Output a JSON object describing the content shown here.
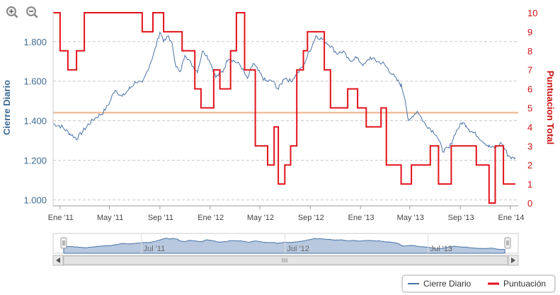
{
  "colors": {
    "price": "#4a73a8",
    "score": "#e3121b",
    "refline": "#f0c0a0",
    "grid": "#c8c8c8",
    "navigator_fill": "#b7c8df",
    "scrollbar": "#e4e4e4"
  },
  "icons": [
    "zoom-in-icon",
    "zoom-out-icon"
  ],
  "chart_data": {
    "type": "line",
    "y_left": {
      "title": "Cierre Diario",
      "ticks": [
        "1.000",
        "1.200",
        "1.400",
        "1.600",
        "1.800"
      ],
      "range": [
        970,
        1960
      ]
    },
    "y_right": {
      "title": "Puntuacion Total",
      "ticks": [
        "0",
        "1",
        "2",
        "3",
        "4",
        "5",
        "6",
        "7",
        "8",
        "9",
        "10"
      ],
      "range": [
        0,
        10
      ]
    },
    "x_axis": {
      "ticks": [
        "Ene '11",
        "May '11",
        "Sep '11",
        "Ene '12",
        "May '12",
        "Sep '12",
        "Ene '13",
        "May '13",
        "Sep '13",
        "Ene '14"
      ],
      "range": [
        "2010-12-15",
        "2014-01-20"
      ]
    },
    "reference_line": {
      "axis": "right",
      "value": 4.75
    },
    "navigator_labels": [
      "Jul '11",
      "Jul '12",
      "Jul '13"
    ],
    "grid": "horizontal dashed",
    "legend_position": "bottom-right",
    "series": [
      {
        "name": "Cierre Diario",
        "axis": "left",
        "style": "line",
        "points": [
          [
            "2010-12-15",
            1385
          ],
          [
            "2011-01-05",
            1370
          ],
          [
            "2011-01-25",
            1335
          ],
          [
            "2011-02-10",
            1310
          ],
          [
            "2011-02-25",
            1345
          ],
          [
            "2011-03-10",
            1380
          ],
          [
            "2011-03-25",
            1410
          ],
          [
            "2011-04-15",
            1440
          ],
          [
            "2011-05-01",
            1490
          ],
          [
            "2011-05-15",
            1560
          ],
          [
            "2011-06-01",
            1520
          ],
          [
            "2011-06-20",
            1565
          ],
          [
            "2011-07-05",
            1600
          ],
          [
            "2011-07-20",
            1585
          ],
          [
            "2011-08-01",
            1650
          ],
          [
            "2011-08-10",
            1700
          ],
          [
            "2011-08-20",
            1760
          ],
          [
            "2011-09-01",
            1850
          ],
          [
            "2011-09-12",
            1800
          ],
          [
            "2011-09-22",
            1830
          ],
          [
            "2011-10-01",
            1780
          ],
          [
            "2011-10-10",
            1680
          ],
          [
            "2011-10-20",
            1640
          ],
          [
            "2011-11-01",
            1740
          ],
          [
            "2011-11-15",
            1690
          ],
          [
            "2011-12-01",
            1650
          ],
          [
            "2011-12-15",
            1760
          ],
          [
            "2012-01-01",
            1700
          ],
          [
            "2012-01-15",
            1620
          ],
          [
            "2012-02-01",
            1650
          ],
          [
            "2012-02-15",
            1720
          ],
          [
            "2012-03-01",
            1700
          ],
          [
            "2012-03-15",
            1680
          ],
          [
            "2012-04-01",
            1610
          ],
          [
            "2012-04-15",
            1690
          ],
          [
            "2012-05-01",
            1640
          ],
          [
            "2012-05-15",
            1600
          ],
          [
            "2012-06-01",
            1600
          ],
          [
            "2012-06-15",
            1560
          ],
          [
            "2012-07-01",
            1620
          ],
          [
            "2012-07-15",
            1600
          ],
          [
            "2012-08-01",
            1640
          ],
          [
            "2012-08-15",
            1680
          ],
          [
            "2012-09-01",
            1760
          ],
          [
            "2012-09-15",
            1830
          ],
          [
            "2012-10-01",
            1810
          ],
          [
            "2012-10-20",
            1780
          ],
          [
            "2012-11-05",
            1740
          ],
          [
            "2012-11-20",
            1750
          ],
          [
            "2012-12-05",
            1700
          ],
          [
            "2012-12-20",
            1720
          ],
          [
            "2013-01-10",
            1680
          ],
          [
            "2013-01-25",
            1720
          ],
          [
            "2013-02-10",
            1700
          ],
          [
            "2013-02-25",
            1690
          ],
          [
            "2013-03-10",
            1660
          ],
          [
            "2013-03-25",
            1620
          ],
          [
            "2013-04-10",
            1580
          ],
          [
            "2013-04-20",
            1510
          ],
          [
            "2013-04-28",
            1390
          ],
          [
            "2013-05-10",
            1430
          ],
          [
            "2013-05-20",
            1450
          ],
          [
            "2013-06-05",
            1390
          ],
          [
            "2013-06-20",
            1360
          ],
          [
            "2013-07-05",
            1330
          ],
          [
            "2013-07-20",
            1250
          ],
          [
            "2013-08-05",
            1260
          ],
          [
            "2013-08-20",
            1340
          ],
          [
            "2013-09-05",
            1390
          ],
          [
            "2013-09-15",
            1380
          ],
          [
            "2013-09-25",
            1350
          ],
          [
            "2013-10-10",
            1330
          ],
          [
            "2013-10-25",
            1300
          ],
          [
            "2013-11-10",
            1270
          ],
          [
            "2013-11-25",
            1260
          ],
          [
            "2013-12-10",
            1290
          ],
          [
            "2013-12-25",
            1230
          ],
          [
            "2014-01-05",
            1210
          ],
          [
            "2014-01-13",
            1215
          ]
        ]
      },
      {
        "name": "Puntuación",
        "axis": "right",
        "style": "step",
        "points": [
          [
            "2010-12-15",
            10
          ],
          [
            "2011-01-01",
            8
          ],
          [
            "2011-01-20",
            7
          ],
          [
            "2011-02-10",
            8
          ],
          [
            "2011-03-01",
            10
          ],
          [
            "2011-07-20",
            9
          ],
          [
            "2011-08-15",
            10
          ],
          [
            "2011-09-10",
            9
          ],
          [
            "2011-10-25",
            8
          ],
          [
            "2011-11-25",
            6
          ],
          [
            "2011-12-10",
            5
          ],
          [
            "2012-01-10",
            7
          ],
          [
            "2012-01-25",
            6
          ],
          [
            "2012-02-20",
            8
          ],
          [
            "2012-03-05",
            10
          ],
          [
            "2012-03-25",
            7
          ],
          [
            "2012-04-20",
            3
          ],
          [
            "2012-05-20",
            2
          ],
          [
            "2012-06-05",
            4
          ],
          [
            "2012-06-15",
            1
          ],
          [
            "2012-07-01",
            2
          ],
          [
            "2012-07-15",
            3
          ],
          [
            "2012-07-30",
            7
          ],
          [
            "2012-08-15",
            8
          ],
          [
            "2012-08-25",
            9
          ],
          [
            "2012-10-05",
            7
          ],
          [
            "2012-10-20",
            5
          ],
          [
            "2012-12-01",
            6
          ],
          [
            "2012-12-25",
            5
          ],
          [
            "2013-01-15",
            4
          ],
          [
            "2013-02-20",
            5
          ],
          [
            "2013-03-05",
            2
          ],
          [
            "2013-04-10",
            1
          ],
          [
            "2013-05-05",
            2
          ],
          [
            "2013-06-20",
            3
          ],
          [
            "2013-07-10",
            1
          ],
          [
            "2013-08-10",
            3
          ],
          [
            "2013-10-10",
            2
          ],
          [
            "2013-11-10",
            0
          ],
          [
            "2013-11-25",
            3
          ],
          [
            "2013-12-15",
            1
          ],
          [
            "2014-01-13",
            1
          ]
        ]
      }
    ]
  },
  "legend": {
    "items": [
      {
        "label": "Cierre Diario",
        "color": "#4a73a8"
      },
      {
        "label": "Puntuación",
        "color": "#e3121b"
      }
    ]
  }
}
